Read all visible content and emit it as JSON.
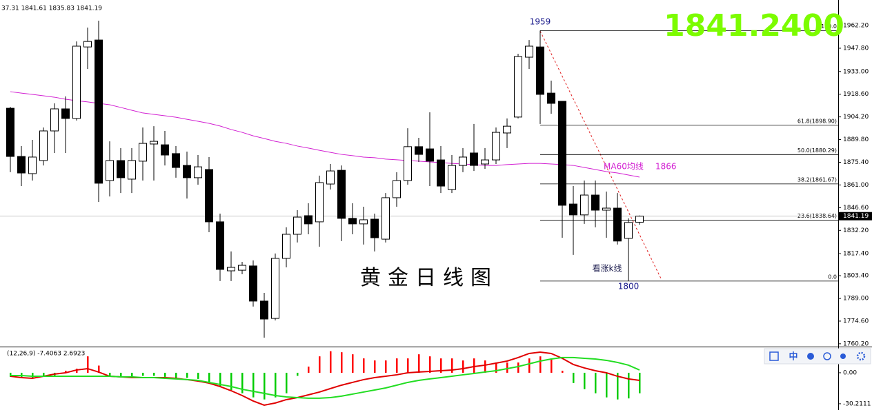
{
  "chart_data": [
    {
      "type": "candlestick",
      "header": "37.31 1841.61 1835.83 1841.19",
      "title": "黄金日线图",
      "price": "1841.2400",
      "open": [
        1909.7,
        1879.1,
        1868.2,
        1876.5,
        1895.3,
        1909.3,
        1903.2,
        1948.6,
        1953.0,
        1863.8,
        1876.5,
        1864.7,
        1876.1,
        1887.0,
        1886.5,
        1880.9,
        1873.4,
        1865.6,
        1870.8,
        1837.6,
        1806.5,
        1806.9,
        1809.6,
        1787.3,
        1776.3,
        1814.4,
        1829.7,
        1841.5,
        1837.6,
        1861.6,
        1870.3,
        1839.8,
        1836.3,
        1839.3,
        1826.6,
        1852.9,
        1863.8,
        1885.3,
        1883.9,
        1876.9,
        1858.1,
        1873.4,
        1881.3,
        1874.3,
        1876.9,
        1894.0,
        1904.1,
        1942.1,
        1948.6,
        1919.3,
        1914.1,
        1848.9,
        1842.0,
        1854.6,
        1845.0,
        1846.3,
        1827.1,
        1837.31
      ],
      "high": [
        1910.6,
        1885.7,
        1889.6,
        1897.5,
        1912.8,
        1917.2,
        1952.1,
        1960.9,
        1965.3,
        1888.7,
        1884.4,
        1884.4,
        1897.5,
        1898.3,
        1895.3,
        1885.7,
        1882.2,
        1880.0,
        1878.7,
        1842.8,
        1818.8,
        1812.2,
        1813.1,
        1792.5,
        1817.5,
        1834.1,
        1845.0,
        1849.4,
        1866.9,
        1874.3,
        1873.4,
        1849.4,
        1847.2,
        1842.8,
        1855.9,
        1869.1,
        1897.0,
        1890.9,
        1907.1,
        1885.7,
        1880.0,
        1884.4,
        1899.7,
        1884.4,
        1897.5,
        1903.2,
        1944.3,
        1953.0,
        1959,
        1927.2,
        1914.1,
        1860.3,
        1863.8,
        1863.8,
        1856.8,
        1855.9,
        1839.8,
        1841.61
      ],
      "low": [
        1869.1,
        1860.3,
        1863.8,
        1873.4,
        1881.3,
        1881.3,
        1901.9,
        1934.6,
        1850.2,
        1853.7,
        1855.9,
        1855.9,
        1863.8,
        1863.8,
        1873.4,
        1865.6,
        1852.4,
        1861.2,
        1831.0,
        1800.0,
        1800.0,
        1804.3,
        1783.8,
        1764.1,
        1775.0,
        1808.7,
        1824.5,
        1829.7,
        1821.8,
        1858.1,
        1825.4,
        1829.7,
        1823.2,
        1818.8,
        1824.5,
        1847.2,
        1861.2,
        1875.6,
        1860.3,
        1855.9,
        1855.9,
        1869.1,
        1869.9,
        1871.2,
        1874.3,
        1884.4,
        1903.2,
        1934.6,
        1899.7,
        1906.2,
        1827.5,
        1816.6,
        1836.3,
        1834.1,
        1827.5,
        1823.2,
        1800,
        1835.83
      ],
      "close": [
        1879.1,
        1868.6,
        1878.7,
        1895.3,
        1909.3,
        1903.2,
        1949.1,
        1952.1,
        1862.1,
        1876.5,
        1865.6,
        1876.5,
        1887.4,
        1888.7,
        1880.0,
        1872.1,
        1865.6,
        1872.5,
        1837.6,
        1807.4,
        1808.7,
        1810.0,
        1787.3,
        1775.9,
        1814.4,
        1829.7,
        1840.6,
        1836.3,
        1862.5,
        1869.9,
        1839.8,
        1836.3,
        1838.9,
        1827.5,
        1852.9,
        1863.8,
        1885.3,
        1880.4,
        1876.1,
        1860.3,
        1873.4,
        1878.7,
        1873.4,
        1876.9,
        1894.4,
        1898.3,
        1942.5,
        1949.1,
        1918.5,
        1912.8,
        1848.1,
        1842.0,
        1854.6,
        1845.0,
        1846.3,
        1825.4,
        1837.2,
        1841.19
      ],
      "up_color": "#ffffff",
      "down_color": "#000000",
      "ma": {
        "name": "MA60均线",
        "last": 1866,
        "color": "#d21fd2",
        "values": [
          1920.2,
          1919.3,
          1918.5,
          1917.6,
          1916.7,
          1915.4,
          1914.5,
          1913.7,
          1912.8,
          1911.9,
          1910.2,
          1908.4,
          1906.7,
          1905.8,
          1904.9,
          1904.0,
          1902.7,
          1901.4,
          1900.1,
          1898.4,
          1896.2,
          1894.4,
          1892.2,
          1890.5,
          1888.7,
          1887.4,
          1885.7,
          1884.4,
          1883.0,
          1881.7,
          1880.4,
          1879.6,
          1878.7,
          1878.3,
          1877.4,
          1877.0,
          1876.5,
          1876.1,
          1875.6,
          1875.2,
          1874.7,
          1874.3,
          1873.9,
          1873.4,
          1873.4,
          1873.9,
          1874.3,
          1874.7,
          1874.7,
          1874.3,
          1873.9,
          1873.4,
          1872.1,
          1870.8,
          1869.5,
          1868.6,
          1867.3,
          1866.0
        ]
      },
      "ylim": [
        1758.4,
        1978.4
      ],
      "yticks": [
        {
          "value": 1962.2,
          "label": "1962.20"
        },
        {
          "value": 1947.8,
          "label": "1947.80"
        },
        {
          "value": 1933,
          "label": "1933.00"
        },
        {
          "value": 1918.6,
          "label": "1918.60"
        },
        {
          "value": 1904.2,
          "label": "1904.20"
        },
        {
          "value": 1889.8,
          "label": "1889.80"
        },
        {
          "value": 1875.4,
          "label": "1875.40"
        },
        {
          "value": 1861,
          "label": "1861.00"
        },
        {
          "value": 1846.6,
          "label": "1846.60"
        },
        {
          "value": 1832.2,
          "label": "1832.20"
        },
        {
          "value": 1817.4,
          "label": "1817.40"
        },
        {
          "value": 1803.4,
          "label": "1803.40"
        },
        {
          "value": 1789,
          "label": "1789.00"
        },
        {
          "value": 1774.6,
          "label": "1774.60"
        },
        {
          "value": 1760.2,
          "label": "1760.20"
        }
      ],
      "last_price": 1841.19,
      "fib": [
        {
          "label": "100.0",
          "value": 1959
        },
        {
          "label": "61.8(1898.90)",
          "value": 1898.9
        },
        {
          "label": "50.0(1880.29)",
          "value": 1880.29
        },
        {
          "label": "38.2(1861.67)",
          "value": 1861.67
        },
        {
          "label": "23.6(1838.64)",
          "value": 1838.64
        },
        {
          "label": "0.0",
          "value": 1800
        }
      ],
      "high_mark": 1959,
      "low_mark": 1800,
      "signal_note": "看涨k线"
    },
    {
      "type": "macd",
      "title": "(12,26,9) -7.4063 2.6923",
      "up_color": "#ff0000",
      "down_color": "#00cc00",
      "histogram": [
        -4,
        -5,
        -5,
        -4,
        -3,
        2,
        4,
        16,
        7,
        -3,
        -4,
        -4,
        -3,
        -3,
        -4,
        -5,
        -5,
        -6,
        -10,
        -14,
        -17,
        -20,
        -24,
        -26,
        -24,
        -20,
        -3,
        6,
        16,
        21,
        20,
        18,
        14,
        12,
        12,
        14,
        14,
        18,
        16,
        14,
        14,
        12,
        14,
        12,
        10,
        10,
        10,
        14,
        16,
        14,
        2,
        -10,
        -16,
        -20,
        -24,
        -26,
        -25,
        -20
      ],
      "lines": [
        {
          "color": "#e00000",
          "values": [
            -3.4,
            -4.7,
            -5.4,
            -3.4,
            -1.3,
            0,
            2.7,
            4.0,
            0.7,
            -3.4,
            -4.0,
            -4.7,
            -4.7,
            -4.7,
            -4.7,
            -5.4,
            -6.7,
            -8.1,
            -10.1,
            -13.4,
            -17.5,
            -22.2,
            -27.5,
            -31.6,
            -29.5,
            -26.2,
            -24.2,
            -21.5,
            -18.8,
            -15.4,
            -12.1,
            -9.4,
            -6.7,
            -4.7,
            -3.4,
            -2.0,
            0,
            0.7,
            1.3,
            2.0,
            2.7,
            4.0,
            6.0,
            7.4,
            9.4,
            11.4,
            14.8,
            18.8,
            20.1,
            18.8,
            14.1,
            8.1,
            4.7,
            2.0,
            0,
            -3.4,
            -6.0,
            -7.4063
          ]
        },
        {
          "color": "#22dd22",
          "values": [
            -2.7,
            -2.7,
            -3.4,
            -3.4,
            -3.4,
            -3.4,
            -3.4,
            -3.4,
            -3.4,
            -3.4,
            -4.0,
            -4.0,
            -4.7,
            -4.7,
            -5.4,
            -6.0,
            -6.7,
            -7.4,
            -9.4,
            -11.4,
            -13.4,
            -16.1,
            -18.1,
            -20.1,
            -22.2,
            -23.5,
            -24.2,
            -24.8,
            -24.8,
            -24.2,
            -22.8,
            -20.8,
            -18.8,
            -16.8,
            -14.8,
            -12.1,
            -9.4,
            -7.4,
            -6.0,
            -4.7,
            -3.4,
            -2.0,
            -0.7,
            0.7,
            2.0,
            4.0,
            6.0,
            8.7,
            11.4,
            13.4,
            14.8,
            14.8,
            14.1,
            13.4,
            12.1,
            10.1,
            7.4,
            2.6923
          ]
        }
      ],
      "ylim": [
        -36.3,
        25.5
      ],
      "yticks": [
        {
          "value": 0,
          "label": "0.00"
        },
        -30.2111
      ]
    }
  ],
  "toolbar": {
    "lang": "中"
  }
}
